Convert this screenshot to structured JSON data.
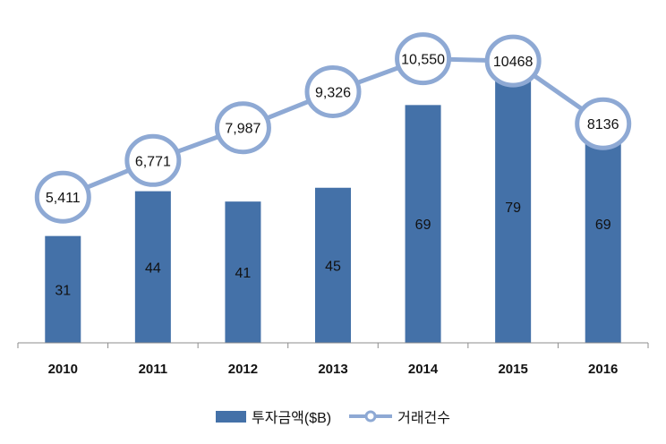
{
  "chart_data": {
    "type": "bar",
    "categories": [
      "2010",
      "2011",
      "2012",
      "2013",
      "2014",
      "2015",
      "2016"
    ],
    "series": [
      {
        "name": "투자금액($B)",
        "type": "bar",
        "values": [
          31,
          44,
          41,
          45,
          69,
          79,
          69
        ],
        "labels": [
          "31",
          "44",
          "41",
          "45",
          "69",
          "79",
          "69"
        ]
      },
      {
        "name": "거래건수",
        "type": "line",
        "values": [
          5411,
          6771,
          7987,
          9326,
          10550,
          10468,
          8136
        ],
        "labels": [
          "5,411",
          "6,771",
          "7,987",
          "9,326",
          "10,550",
          "10468",
          "8136"
        ]
      }
    ],
    "bar_axis": {
      "min": 0,
      "max": 80
    },
    "line_axis": {
      "min": 0,
      "max": 12000
    },
    "grid": false,
    "legend": "bottom",
    "colors": {
      "bar": "#4471A8",
      "line": "#8EA9D4",
      "marker_fill": "#ffffff",
      "marker_stroke": "#8EA9D4"
    }
  }
}
